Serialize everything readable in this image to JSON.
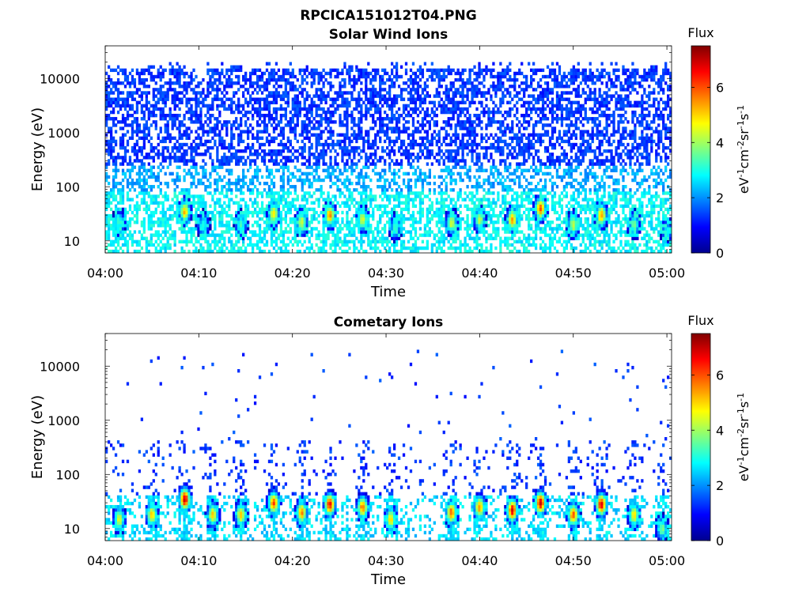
{
  "figure": {
    "title": "RPCICA151012T04.PNG"
  },
  "chart_data": [
    {
      "type": "heatmap",
      "title": "Solar Wind Ions",
      "xlabel": "Time",
      "ylabel": "Energy (eV)",
      "x_ticks": [
        "04:00",
        "04:10",
        "04:20",
        "04:30",
        "04:40",
        "04:50",
        "05:00"
      ],
      "x_range_minutes": [
        0,
        60.5
      ],
      "y_scale": "log",
      "y_ticks": [
        10,
        100,
        1000,
        10000
      ],
      "y_tick_labels": [
        "10",
        "100",
        "1000",
        "10000"
      ],
      "y_range_eV": [
        6,
        40000
      ],
      "grid": false,
      "colorbar": {
        "label": "Flux",
        "unit": "eV-1cm-2sr-1s-1",
        "ticks": [
          "0",
          "2",
          "4",
          "6"
        ],
        "range": [
          0,
          7.5
        ],
        "colormap": "jet"
      },
      "features": {
        "background_flux": 1.2,
        "high_energy_noise_density": 0.55,
        "low_energy_band_eV": [
          6,
          80
        ],
        "low_energy_band_flux": 2.8,
        "bursts": [
          {
            "time_min": 1.5,
            "peak_eV": 22,
            "flux": 3.2
          },
          {
            "time_min": 8.5,
            "peak_eV": 35,
            "flux": 5.2
          },
          {
            "time_min": 10.5,
            "peak_eV": 20,
            "flux": 3.2
          },
          {
            "time_min": 14.5,
            "peak_eV": 20,
            "flux": 3.4
          },
          {
            "time_min": 18.0,
            "peak_eV": 32,
            "flux": 5.0
          },
          {
            "time_min": 21.0,
            "peak_eV": 22,
            "flux": 4.5
          },
          {
            "time_min": 24.0,
            "peak_eV": 30,
            "flux": 5.6
          },
          {
            "time_min": 27.5,
            "peak_eV": 25,
            "flux": 4.6
          },
          {
            "time_min": 31.0,
            "peak_eV": 18,
            "flux": 3.4
          },
          {
            "time_min": 37.0,
            "peak_eV": 22,
            "flux": 4.5
          },
          {
            "time_min": 40.0,
            "peak_eV": 25,
            "flux": 4.3
          },
          {
            "time_min": 43.5,
            "peak_eV": 25,
            "flux": 5.4
          },
          {
            "time_min": 46.5,
            "peak_eV": 40,
            "flux": 6.0
          },
          {
            "time_min": 50.0,
            "peak_eV": 20,
            "flux": 4.4
          },
          {
            "time_min": 53.0,
            "peak_eV": 30,
            "flux": 5.6
          },
          {
            "time_min": 56.5,
            "peak_eV": 20,
            "flux": 3.8
          },
          {
            "time_min": 60.0,
            "peak_eV": 15,
            "flux": 3.0
          }
        ]
      }
    },
    {
      "type": "heatmap",
      "title": "Cometary Ions",
      "xlabel": "Time",
      "ylabel": "Energy (eV)",
      "x_ticks": [
        "04:00",
        "04:10",
        "04:20",
        "04:30",
        "04:40",
        "04:50",
        "05:00"
      ],
      "x_range_minutes": [
        0,
        60.5
      ],
      "y_scale": "log",
      "y_ticks": [
        10,
        100,
        1000,
        10000
      ],
      "y_tick_labels": [
        "10",
        "100",
        "1000",
        "10000"
      ],
      "y_range_eV": [
        6,
        40000
      ],
      "grid": false,
      "colorbar": {
        "label": "Flux",
        "unit": "eV-1cm-2sr-1s-1",
        "ticks": [
          "0",
          "2",
          "4",
          "6"
        ],
        "range": [
          0,
          7.5
        ],
        "colormap": "jet"
      },
      "features": {
        "background_flux": 1.2,
        "high_energy_noise_density": 0.012,
        "low_energy_band_eV": [
          6,
          40
        ],
        "low_energy_band_flux": 2.6,
        "bursts": [
          {
            "time_min": 1.5,
            "peak_eV": 15,
            "flux": 4.6
          },
          {
            "time_min": 5.0,
            "peak_eV": 18,
            "flux": 5.2
          },
          {
            "time_min": 8.5,
            "peak_eV": 35,
            "flux": 7.0
          },
          {
            "time_min": 11.5,
            "peak_eV": 18,
            "flux": 5.2
          },
          {
            "time_min": 14.5,
            "peak_eV": 18,
            "flux": 5.2
          },
          {
            "time_min": 18.0,
            "peak_eV": 30,
            "flux": 6.2
          },
          {
            "time_min": 21.0,
            "peak_eV": 20,
            "flux": 5.6
          },
          {
            "time_min": 24.0,
            "peak_eV": 28,
            "flux": 6.6
          },
          {
            "time_min": 27.5,
            "peak_eV": 25,
            "flux": 5.8
          },
          {
            "time_min": 30.5,
            "peak_eV": 15,
            "flux": 5.0
          },
          {
            "time_min": 37.0,
            "peak_eV": 20,
            "flux": 6.0
          },
          {
            "time_min": 40.0,
            "peak_eV": 25,
            "flux": 5.6
          },
          {
            "time_min": 43.5,
            "peak_eV": 22,
            "flux": 6.8
          },
          {
            "time_min": 46.5,
            "peak_eV": 30,
            "flux": 7.0
          },
          {
            "time_min": 50.0,
            "peak_eV": 18,
            "flux": 6.0
          },
          {
            "time_min": 53.0,
            "peak_eV": 28,
            "flux": 6.8
          },
          {
            "time_min": 56.5,
            "peak_eV": 18,
            "flux": 5.0
          },
          {
            "time_min": 59.5,
            "peak_eV": 10,
            "flux": 3.8
          }
        ]
      }
    }
  ]
}
